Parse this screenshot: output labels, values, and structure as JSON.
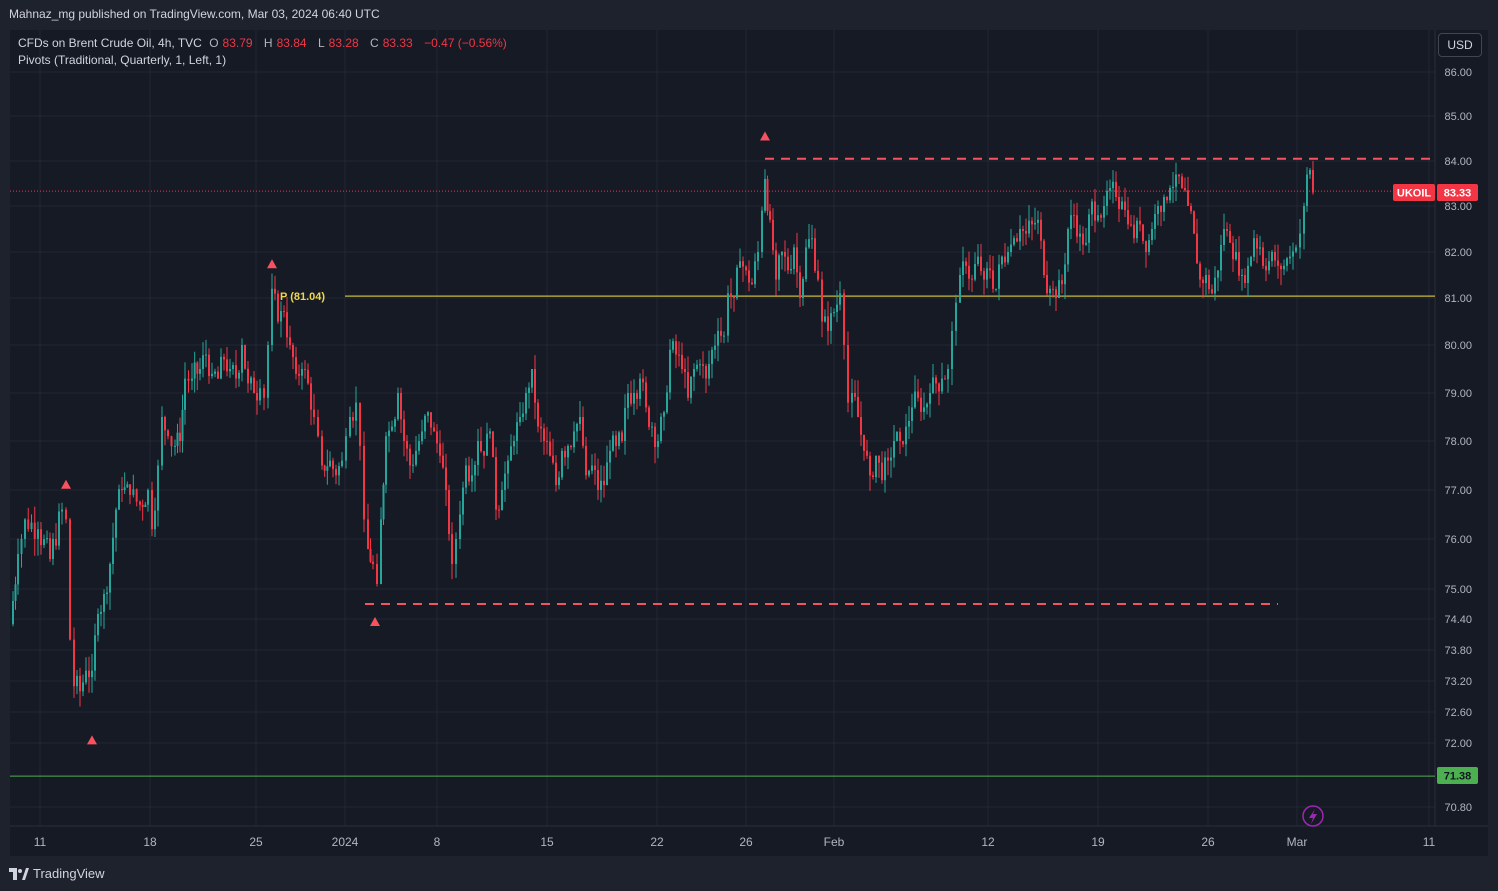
{
  "header": {
    "publisher_text": "Mahnaz_mg published on TradingView.com, Mar 03, 2024 06:40 UTC"
  },
  "legend": {
    "symbol": "CFDs on Brent Crude Oil, 4h, TVC",
    "o_label": "O",
    "o_value": "83.79",
    "h_label": "H",
    "h_value": "83.84",
    "l_label": "L",
    "l_value": "83.28",
    "c_label": "C",
    "c_value": "83.33",
    "change": "−0.47 (−0.56%)",
    "indicator": "Pivots (Traditional, Quarterly, 1, Left, 1)"
  },
  "currency_button": "USD",
  "footer": {
    "brand": "TradingView",
    "brand_icon": "tradingview-logo-icon"
  },
  "colors": {
    "up": "#26a69a",
    "down": "#f23645",
    "pivot": "#c9b93a",
    "support": "#4caf50",
    "dashed": "#f7525f",
    "background": "#161a25"
  },
  "chart_data": {
    "type": "candlestick",
    "title": "CFDs on Brent Crude Oil, 4h, TVC",
    "ylim": [
      70.5,
      86.6
    ],
    "y_ticks": [
      "86.00",
      "85.00",
      "84.00",
      "83.00",
      "82.00",
      "81.00",
      "80.00",
      "79.00",
      "78.00",
      "77.00",
      "76.00",
      "75.00",
      "74.40",
      "73.80",
      "73.20",
      "72.60",
      "72.00",
      "70.80"
    ],
    "x_ticks": [
      "11",
      "18",
      "25",
      "2024",
      "8",
      "15",
      "22",
      "26",
      "Feb",
      "12",
      "19",
      "26",
      "Mar",
      "11"
    ],
    "current_price": {
      "label": "UKOIL",
      "value": "83.33"
    },
    "support_level": {
      "value": "71.38"
    },
    "pivot": {
      "label": "P (81.04)",
      "value": 81.04
    },
    "resistance_zone_top": 84.05,
    "support_zone_bottom": 74.7,
    "pivot_markers": [
      {
        "type": "high",
        "price": 76.7,
        "date": "Dec 12"
      },
      {
        "type": "low",
        "price": 72.4,
        "date": "Dec 13"
      },
      {
        "type": "high",
        "price": 81.3,
        "date": "Dec 26"
      },
      {
        "type": "low",
        "price": 74.7,
        "date": "Jan 3"
      },
      {
        "type": "high",
        "price": 84.1,
        "date": "Jan 26"
      }
    ],
    "path": [
      [
        10.5,
        74.3,
        "Dec 8"
      ],
      [
        18,
        75.7,
        ""
      ],
      [
        25,
        76.4,
        ""
      ],
      [
        38,
        76.2,
        ""
      ],
      [
        50,
        75.6,
        ""
      ],
      [
        62,
        76.6,
        ""
      ],
      [
        66,
        76.4,
        "Dec 12"
      ],
      [
        70,
        74.0,
        ""
      ],
      [
        74,
        73.1,
        ""
      ],
      [
        80,
        73.0,
        ""
      ],
      [
        86,
        73.4,
        ""
      ],
      [
        92,
        73.4,
        ""
      ],
      [
        98,
        74.5,
        ""
      ],
      [
        104,
        74.9,
        ""
      ],
      [
        110,
        75.5,
        ""
      ],
      [
        116,
        76.6,
        ""
      ],
      [
        122,
        77.0,
        ""
      ],
      [
        130,
        76.9,
        ""
      ],
      [
        140,
        76.7,
        ""
      ],
      [
        148,
        77.0,
        ""
      ],
      [
        152,
        76.2,
        ""
      ],
      [
        158,
        77.5,
        ""
      ],
      [
        162,
        78.5,
        ""
      ],
      [
        168,
        78.1,
        ""
      ],
      [
        175,
        77.9,
        ""
      ],
      [
        180,
        78.0,
        ""
      ],
      [
        185,
        79.3,
        ""
      ],
      [
        192,
        79.3,
        ""
      ],
      [
        200,
        79.5,
        ""
      ],
      [
        206,
        79.8,
        ""
      ],
      [
        212,
        79.4,
        ""
      ],
      [
        218,
        79.3,
        ""
      ],
      [
        224,
        79.7,
        ""
      ],
      [
        230,
        79.5,
        ""
      ],
      [
        236,
        79.3,
        ""
      ],
      [
        242,
        80.0,
        ""
      ],
      [
        248,
        79.2,
        ""
      ],
      [
        254,
        79.0,
        ""
      ],
      [
        260,
        79.1,
        ""
      ],
      [
        264,
        78.9,
        ""
      ],
      [
        268,
        80.0,
        ""
      ],
      [
        272,
        81.2,
        "Dec 26"
      ],
      [
        278,
        80.5,
        ""
      ],
      [
        284,
        80.7,
        ""
      ],
      [
        290,
        80.0,
        ""
      ],
      [
        296,
        79.4,
        ""
      ],
      [
        302,
        79.5,
        ""
      ],
      [
        308,
        79.2,
        ""
      ],
      [
        314,
        78.5,
        ""
      ],
      [
        318,
        78.1,
        ""
      ],
      [
        322,
        77.5,
        ""
      ],
      [
        330,
        77.6,
        ""
      ],
      [
        336,
        77.3,
        ""
      ],
      [
        342,
        77.6,
        ""
      ],
      [
        346,
        78.1,
        ""
      ],
      [
        350,
        78.5,
        ""
      ],
      [
        356,
        78.8,
        ""
      ],
      [
        360,
        77.9,
        ""
      ],
      [
        364,
        76.4,
        ""
      ],
      [
        368,
        75.8,
        ""
      ],
      [
        373,
        75.5,
        ""
      ],
      [
        377,
        75.1,
        "Jan 3"
      ],
      [
        381,
        76.4,
        ""
      ],
      [
        386,
        78.1,
        ""
      ],
      [
        392,
        78.3,
        ""
      ],
      [
        398,
        79.0,
        ""
      ],
      [
        404,
        78.0,
        ""
      ],
      [
        410,
        77.5,
        ""
      ],
      [
        416,
        77.8,
        ""
      ],
      [
        422,
        78.2,
        ""
      ],
      [
        428,
        78.6,
        ""
      ],
      [
        434,
        78.2,
        ""
      ],
      [
        440,
        77.7,
        ""
      ],
      [
        446,
        77.0,
        ""
      ],
      [
        452,
        75.5,
        ""
      ],
      [
        456,
        76.0,
        ""
      ],
      [
        460,
        76.5,
        ""
      ],
      [
        466,
        77.5,
        ""
      ],
      [
        472,
        77.3,
        ""
      ],
      [
        478,
        78.0,
        ""
      ],
      [
        484,
        77.7,
        ""
      ],
      [
        490,
        78.2,
        ""
      ],
      [
        496,
        76.6,
        ""
      ],
      [
        502,
        77.0,
        ""
      ],
      [
        508,
        77.6,
        ""
      ],
      [
        514,
        78.0,
        ""
      ],
      [
        520,
        78.5,
        ""
      ],
      [
        526,
        79.0,
        ""
      ],
      [
        532,
        79.5,
        ""
      ],
      [
        538,
        78.3,
        ""
      ],
      [
        544,
        78.0,
        ""
      ],
      [
        550,
        77.7,
        ""
      ],
      [
        556,
        77.1,
        ""
      ],
      [
        562,
        77.8,
        ""
      ],
      [
        568,
        77.9,
        ""
      ],
      [
        574,
        78.2,
        ""
      ],
      [
        580,
        78.5,
        ""
      ],
      [
        586,
        77.3,
        ""
      ],
      [
        592,
        77.5,
        ""
      ],
      [
        598,
        77.0,
        ""
      ],
      [
        604,
        77.1,
        ""
      ],
      [
        610,
        77.8,
        ""
      ],
      [
        616,
        77.9,
        ""
      ],
      [
        622,
        78.0,
        ""
      ],
      [
        628,
        79.0,
        ""
      ],
      [
        634,
        79.0,
        ""
      ],
      [
        640,
        79.3,
        ""
      ],
      [
        646,
        78.7,
        ""
      ],
      [
        652,
        78.3,
        ""
      ],
      [
        658,
        78.0,
        ""
      ],
      [
        664,
        78.6,
        ""
      ],
      [
        670,
        79.9,
        ""
      ],
      [
        676,
        79.8,
        ""
      ],
      [
        682,
        79.5,
        ""
      ],
      [
        688,
        78.9,
        ""
      ],
      [
        694,
        79.5,
        ""
      ],
      [
        700,
        79.6,
        ""
      ],
      [
        706,
        79.3,
        ""
      ],
      [
        712,
        79.9,
        ""
      ],
      [
        718,
        80.3,
        ""
      ],
      [
        724,
        80.2,
        ""
      ],
      [
        728,
        81.1,
        ""
      ],
      [
        734,
        81.0,
        ""
      ],
      [
        740,
        81.8,
        ""
      ],
      [
        746,
        81.6,
        ""
      ],
      [
        752,
        81.3,
        ""
      ],
      [
        758,
        82.0,
        ""
      ],
      [
        762,
        82.9,
        ""
      ],
      [
        765,
        83.6,
        "Jan 26"
      ],
      [
        770,
        82.7,
        ""
      ],
      [
        776,
        81.4,
        ""
      ],
      [
        782,
        82.0,
        ""
      ],
      [
        788,
        81.6,
        ""
      ],
      [
        794,
        82.1,
        ""
      ],
      [
        800,
        81.0,
        ""
      ],
      [
        806,
        82.1,
        ""
      ],
      [
        812,
        82.3,
        ""
      ],
      [
        818,
        81.4,
        ""
      ],
      [
        822,
        80.5,
        ""
      ],
      [
        828,
        80.3,
        ""
      ],
      [
        834,
        80.7,
        ""
      ],
      [
        840,
        81.1,
        ""
      ],
      [
        844,
        80.0,
        ""
      ],
      [
        848,
        78.8,
        ""
      ],
      [
        852,
        79.0,
        ""
      ],
      [
        858,
        78.5,
        ""
      ],
      [
        864,
        77.8,
        ""
      ],
      [
        870,
        77.3,
        ""
      ],
      [
        876,
        77.7,
        ""
      ],
      [
        882,
        77.2,
        ""
      ],
      [
        888,
        77.6,
        ""
      ],
      [
        894,
        78.0,
        ""
      ],
      [
        900,
        78.0,
        ""
      ],
      [
        906,
        78.3,
        ""
      ],
      [
        912,
        78.7,
        ""
      ],
      [
        918,
        78.9,
        ""
      ],
      [
        924,
        78.7,
        ""
      ],
      [
        930,
        79.0,
        ""
      ],
      [
        936,
        79.2,
        ""
      ],
      [
        942,
        79.3,
        ""
      ],
      [
        948,
        79.5,
        ""
      ],
      [
        952,
        80.3,
        ""
      ],
      [
        956,
        80.9,
        ""
      ],
      [
        960,
        81.5,
        ""
      ],
      [
        966,
        81.7,
        ""
      ],
      [
        972,
        81.4,
        ""
      ],
      [
        978,
        81.9,
        ""
      ],
      [
        984,
        81.4,
        ""
      ],
      [
        990,
        81.6,
        ""
      ],
      [
        996,
        81.2,
        ""
      ],
      [
        1002,
        81.9,
        ""
      ],
      [
        1008,
        82.0,
        ""
      ],
      [
        1014,
        82.3,
        ""
      ],
      [
        1020,
        82.5,
        ""
      ],
      [
        1026,
        82.4,
        ""
      ],
      [
        1032,
        82.6,
        ""
      ],
      [
        1038,
        82.7,
        ""
      ],
      [
        1044,
        81.5,
        ""
      ],
      [
        1050,
        81.2,
        ""
      ],
      [
        1056,
        81.0,
        ""
      ],
      [
        1062,
        81.3,
        ""
      ],
      [
        1068,
        82.5,
        ""
      ],
      [
        1074,
        82.8,
        ""
      ],
      [
        1080,
        82.4,
        ""
      ],
      [
        1086,
        82.2,
        ""
      ],
      [
        1092,
        83.1,
        ""
      ],
      [
        1098,
        82.8,
        ""
      ],
      [
        1104,
        83.0,
        ""
      ],
      [
        1110,
        83.4,
        ""
      ],
      [
        1116,
        83.2,
        ""
      ],
      [
        1122,
        83.1,
        ""
      ],
      [
        1128,
        82.6,
        ""
      ],
      [
        1134,
        82.3,
        ""
      ],
      [
        1140,
        82.6,
        ""
      ],
      [
        1146,
        82.0,
        ""
      ],
      [
        1152,
        82.5,
        ""
      ],
      [
        1158,
        83.0,
        ""
      ],
      [
        1164,
        83.2,
        ""
      ],
      [
        1170,
        83.4,
        ""
      ],
      [
        1176,
        83.7,
        ""
      ],
      [
        1182,
        83.4,
        ""
      ],
      [
        1188,
        83.0,
        ""
      ],
      [
        1194,
        82.4,
        ""
      ],
      [
        1200,
        81.4,
        ""
      ],
      [
        1206,
        81.5,
        ""
      ],
      [
        1212,
        81.1,
        ""
      ],
      [
        1218,
        81.6,
        ""
      ],
      [
        1224,
        82.5,
        ""
      ],
      [
        1230,
        82.2,
        ""
      ],
      [
        1236,
        82.0,
        ""
      ],
      [
        1242,
        81.5,
        ""
      ],
      [
        1248,
        81.7,
        ""
      ],
      [
        1254,
        82.3,
        ""
      ],
      [
        1260,
        82.1,
        ""
      ],
      [
        1266,
        81.6,
        ""
      ],
      [
        1272,
        82.0,
        ""
      ],
      [
        1278,
        81.7,
        ""
      ],
      [
        1284,
        81.7,
        ""
      ],
      [
        1290,
        81.9,
        ""
      ],
      [
        1296,
        82.1,
        ""
      ],
      [
        1300,
        82.4,
        ""
      ],
      [
        1304,
        83.0,
        ""
      ],
      [
        1307,
        83.7,
        ""
      ],
      [
        1310,
        83.8,
        ""
      ],
      [
        1313,
        83.3,
        "Mar 1"
      ]
    ]
  }
}
